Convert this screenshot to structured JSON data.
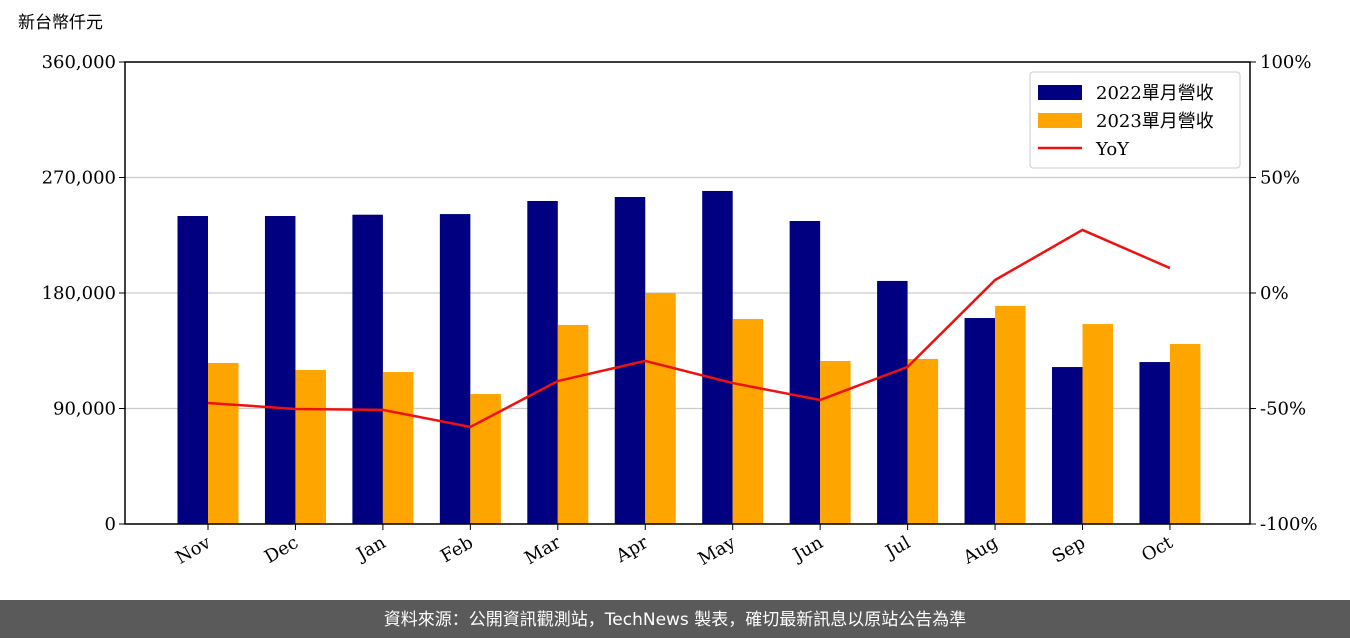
{
  "chart_data": {
    "type": "bar-line",
    "y_label": "新台幣仟元",
    "footer": "資料來源：公開資訊觀測站，TechNews 製表，確切最新訊息以原站公告為準",
    "categories": [
      "Nov",
      "Dec",
      "Jan",
      "Feb",
      "Mar",
      "Apr",
      "May",
      "Jun",
      "Jul",
      "Aug",
      "Sep",
      "Oct"
    ],
    "series": [
      {
        "name": "2022單月營收",
        "type": "bar",
        "color": "#000080",
        "values": [
          240000,
          240000,
          241000,
          241500,
          251700,
          254800,
          259500,
          236100,
          189400,
          160500,
          122300,
          126200
        ]
      },
      {
        "name": "2023單月營收",
        "type": "bar",
        "color": "#ffa500",
        "values": [
          125500,
          120000,
          118400,
          101300,
          155100,
          180000,
          159700,
          127000,
          128600,
          169900,
          155800,
          140300
        ]
      },
      {
        "name": "YoY",
        "type": "line",
        "axis": "y2",
        "color": "#ee1111",
        "values": [
          -47.6,
          -50.2,
          -50.6,
          -58.0,
          -38.1,
          -29.4,
          -39.0,
          -46.3,
          -32.0,
          5.6,
          27.3,
          10.8
        ]
      }
    ],
    "ylim": [
      0,
      360000
    ],
    "yticks": [
      0,
      {
        "value": 90000,
        "label": "90,000"
      },
      {
        "value": 180000,
        "label": "180,000"
      },
      {
        "value": 270000,
        "label": "270,000"
      },
      {
        "value": 360000,
        "label": "360,000"
      }
    ],
    "y2lim": [
      -100,
      100
    ],
    "y2ticks": [
      {
        "value": -100,
        "label": "-100%"
      },
      {
        "value": -50,
        "label": "-50%"
      },
      {
        "value": 0,
        "label": "0%"
      },
      {
        "value": 50,
        "label": "50%"
      },
      {
        "value": 100,
        "label": "100%"
      }
    ],
    "grid": true,
    "legend": "upper right"
  }
}
